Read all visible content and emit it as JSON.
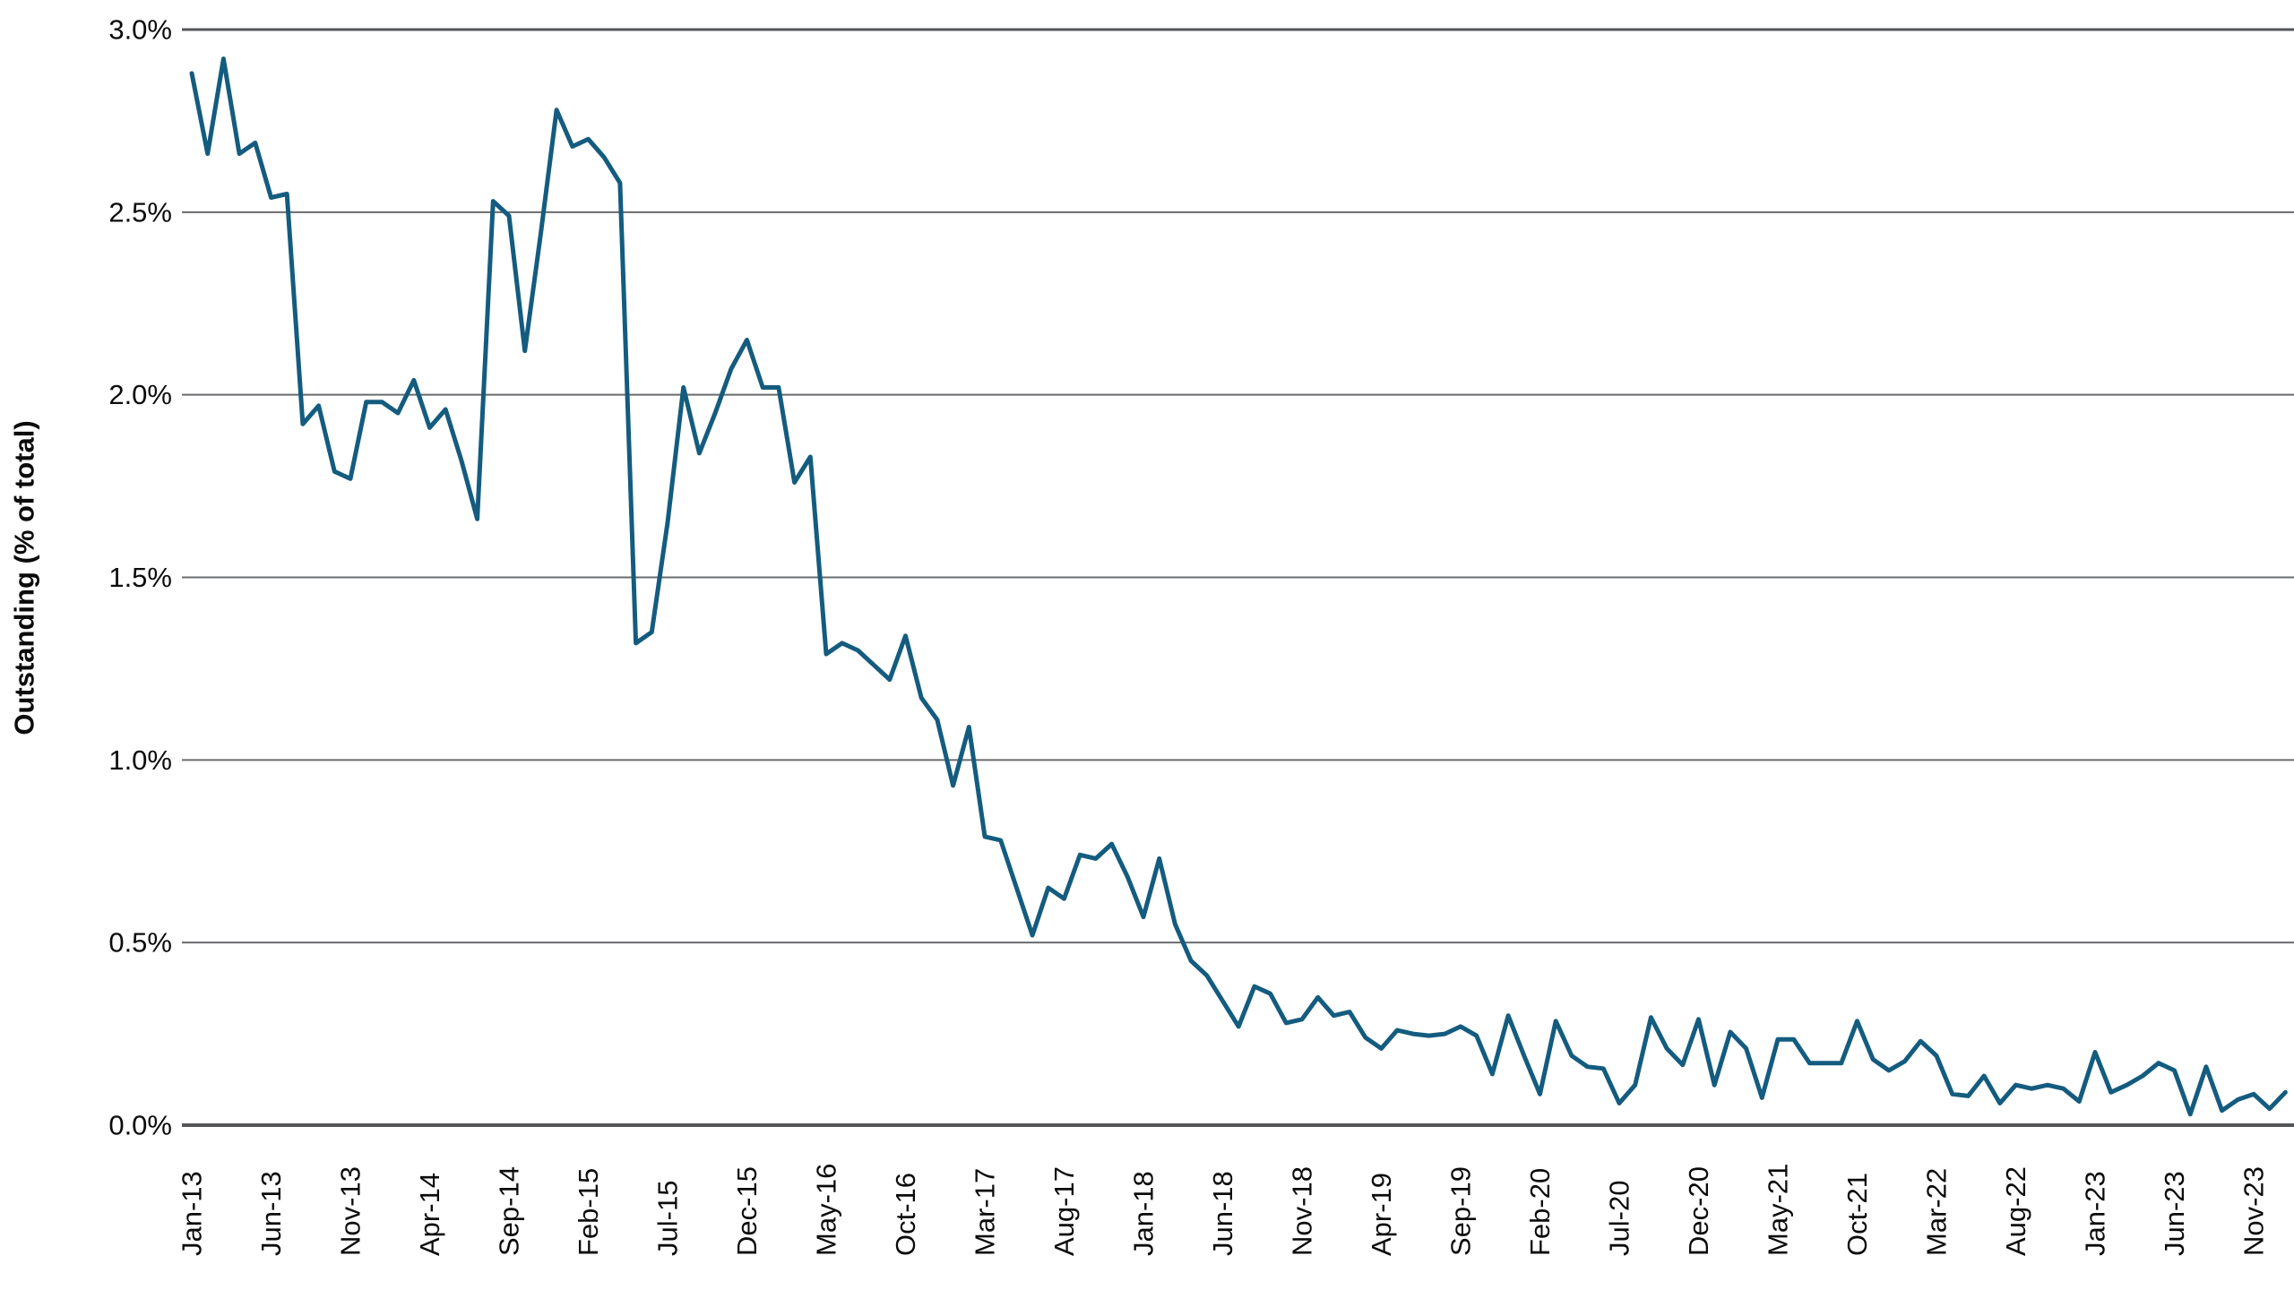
{
  "page": {
    "background_color": "#ffffff"
  },
  "style": {
    "line_color": "#145c7f",
    "grid_color": "#6a6b6e",
    "axis_color": "#54565a",
    "text_color": "#0b0b0b"
  },
  "chart_data": {
    "type": "line",
    "title": "",
    "xlabel": "",
    "ylabel": "Outstanding (% of total)",
    "ylim": [
      0.0,
      3.0
    ],
    "grid": "horizontal",
    "legend": "none",
    "y_ticks": [
      "3.0%",
      "2.5%",
      "2.0%",
      "1.5%",
      "1.0%",
      "0.5%",
      "0.0%"
    ],
    "y_tick_values": [
      3.0,
      2.5,
      2.0,
      1.5,
      1.0,
      0.5,
      0.0
    ],
    "x_tick_every": 5,
    "x_tick_labels": [
      "Jan-13",
      "Jun-13",
      "Nov-13",
      "Apr-14",
      "Sep-14",
      "Feb-15",
      "Jul-15",
      "Dec-15",
      "May-16",
      "Oct-16",
      "Mar-17",
      "Aug-17",
      "Jan-18",
      "Jun-18",
      "Nov-18",
      "Apr-19",
      "Sep-19",
      "Feb-20",
      "Jul-20",
      "Dec-20",
      "May-21",
      "Oct-21",
      "Mar-22",
      "Aug-22",
      "Jan-23",
      "Jun-23",
      "Nov-23"
    ],
    "series": [
      {
        "name": "Outstanding (% of total)",
        "color": "#145c7f",
        "frequency": "monthly",
        "start": "Jan-13",
        "end": "Jan-24",
        "months": [
          "Jan-13",
          "Feb-13",
          "Mar-13",
          "Apr-13",
          "May-13",
          "Jun-13",
          "Jul-13",
          "Aug-13",
          "Sep-13",
          "Oct-13",
          "Nov-13",
          "Dec-13",
          "Jan-14",
          "Feb-14",
          "Mar-14",
          "Apr-14",
          "May-14",
          "Jun-14",
          "Jul-14",
          "Aug-14",
          "Sep-14",
          "Oct-14",
          "Nov-14",
          "Dec-14",
          "Jan-15",
          "Feb-15",
          "Mar-15",
          "Apr-15",
          "May-15",
          "Jun-15",
          "Jul-15",
          "Aug-15",
          "Sep-15",
          "Oct-15",
          "Nov-15",
          "Dec-15",
          "Jan-16",
          "Feb-16",
          "Mar-16",
          "Apr-16",
          "May-16",
          "Jun-16",
          "Jul-16",
          "Aug-16",
          "Sep-16",
          "Oct-16",
          "Nov-16",
          "Dec-16",
          "Jan-17",
          "Feb-17",
          "Mar-17",
          "Apr-17",
          "May-17",
          "Jun-17",
          "Jul-17",
          "Aug-17",
          "Sep-17",
          "Oct-17",
          "Nov-17",
          "Dec-17",
          "Jan-18",
          "Feb-18",
          "Mar-18",
          "Apr-18",
          "May-18",
          "Jun-18",
          "Jul-18",
          "Aug-18",
          "Sep-18",
          "Oct-18",
          "Nov-18",
          "Dec-18",
          "Jan-19",
          "Feb-19",
          "Mar-19",
          "Apr-19",
          "May-19",
          "Jun-19",
          "Jul-19",
          "Aug-19",
          "Sep-19",
          "Oct-19",
          "Nov-19",
          "Dec-19",
          "Jan-20",
          "Feb-20",
          "Mar-20",
          "Apr-20",
          "May-20",
          "Jun-20",
          "Jul-20",
          "Aug-20",
          "Sep-20",
          "Oct-20",
          "Nov-20",
          "Dec-20",
          "Jan-21",
          "Feb-21",
          "Mar-21",
          "Apr-21",
          "May-21",
          "Jun-21",
          "Jul-21",
          "Aug-21",
          "Sep-21",
          "Oct-21",
          "Nov-21",
          "Dec-21",
          "Jan-22",
          "Feb-22",
          "Mar-22",
          "Apr-22",
          "May-22",
          "Jun-22",
          "Jul-22",
          "Aug-22",
          "Sep-22",
          "Oct-22",
          "Nov-22",
          "Dec-22",
          "Jan-23",
          "Feb-23",
          "Mar-23",
          "Apr-23",
          "May-23",
          "Jun-23",
          "Jul-23",
          "Aug-23",
          "Sep-23",
          "Oct-23",
          "Nov-23",
          "Dec-23",
          "Jan-24"
        ],
        "values": [
          2.88,
          2.66,
          2.92,
          2.66,
          2.69,
          2.54,
          2.55,
          1.92,
          1.97,
          1.79,
          1.77,
          1.98,
          1.98,
          1.95,
          2.04,
          1.91,
          1.96,
          1.82,
          1.66,
          2.53,
          2.49,
          2.12,
          2.44,
          2.78,
          2.68,
          2.7,
          2.65,
          2.58,
          1.32,
          1.35,
          1.65,
          2.02,
          1.84,
          1.95,
          2.07,
          2.15,
          2.02,
          2.02,
          1.76,
          1.83,
          1.29,
          1.32,
          1.3,
          1.26,
          1.22,
          1.34,
          1.17,
          1.11,
          0.93,
          1.09,
          0.79,
          0.78,
          0.65,
          0.52,
          0.65,
          0.62,
          0.74,
          0.73,
          0.77,
          0.68,
          0.57,
          0.73,
          0.55,
          0.45,
          0.41,
          0.34,
          0.27,
          0.38,
          0.36,
          0.28,
          0.29,
          0.35,
          0.3,
          0.31,
          0.24,
          0.21,
          0.26,
          0.25,
          0.245,
          0.25,
          0.27,
          0.245,
          0.14,
          0.3,
          0.19,
          0.085,
          0.285,
          0.19,
          0.16,
          0.155,
          0.06,
          0.11,
          0.295,
          0.21,
          0.165,
          0.29,
          0.11,
          0.255,
          0.21,
          0.075,
          0.235,
          0.235,
          0.17,
          0.17,
          0.17,
          0.285,
          0.18,
          0.15,
          0.175,
          0.23,
          0.19,
          0.085,
          0.08,
          0.135,
          0.06,
          0.11,
          0.1,
          0.11,
          0.1,
          0.065,
          0.2,
          0.09,
          0.11,
          0.135,
          0.17,
          0.15,
          0.03,
          0.16,
          0.04,
          0.07,
          0.085,
          0.045,
          0.09
        ]
      }
    ]
  }
}
